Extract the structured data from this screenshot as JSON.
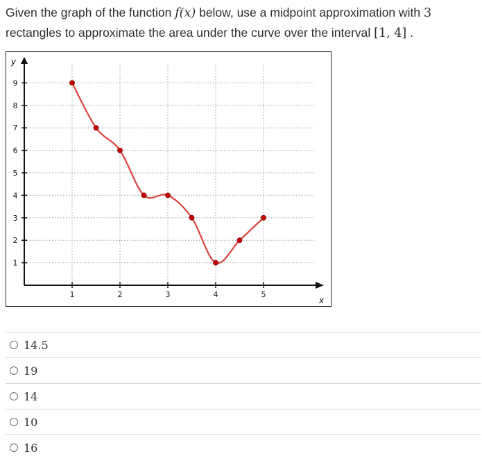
{
  "question": {
    "part1": "Given the graph of the function ",
    "func": "f(x)",
    "part2": " below, use a midpoint approximation with ",
    "n": "3",
    "part3": " rectangles to approximate the area under the curve over the interval ",
    "interval": "[1, 4]",
    "part4": " ."
  },
  "chart_data": {
    "type": "line",
    "xlabel": "x",
    "ylabel": "y",
    "xlim": [
      0,
      5.5
    ],
    "ylim": [
      0,
      10
    ],
    "x_ticks": [
      "1",
      "2",
      "3",
      "4",
      "5"
    ],
    "y_ticks": [
      "1",
      "2",
      "3",
      "4",
      "5",
      "6",
      "7",
      "8",
      "9"
    ],
    "grid": "dotted",
    "curve_color": "#d9413a",
    "point_color": "#c40000",
    "series": [
      {
        "x": [
          1,
          1.5,
          2,
          2.5,
          3,
          3.5,
          4,
          4.5,
          5
        ],
        "values": [
          9,
          7,
          6,
          4,
          4,
          3,
          1,
          2,
          3
        ]
      }
    ]
  },
  "options": [
    {
      "label": "14.5"
    },
    {
      "label": "19"
    },
    {
      "label": "14"
    },
    {
      "label": "10"
    },
    {
      "label": "16"
    }
  ]
}
